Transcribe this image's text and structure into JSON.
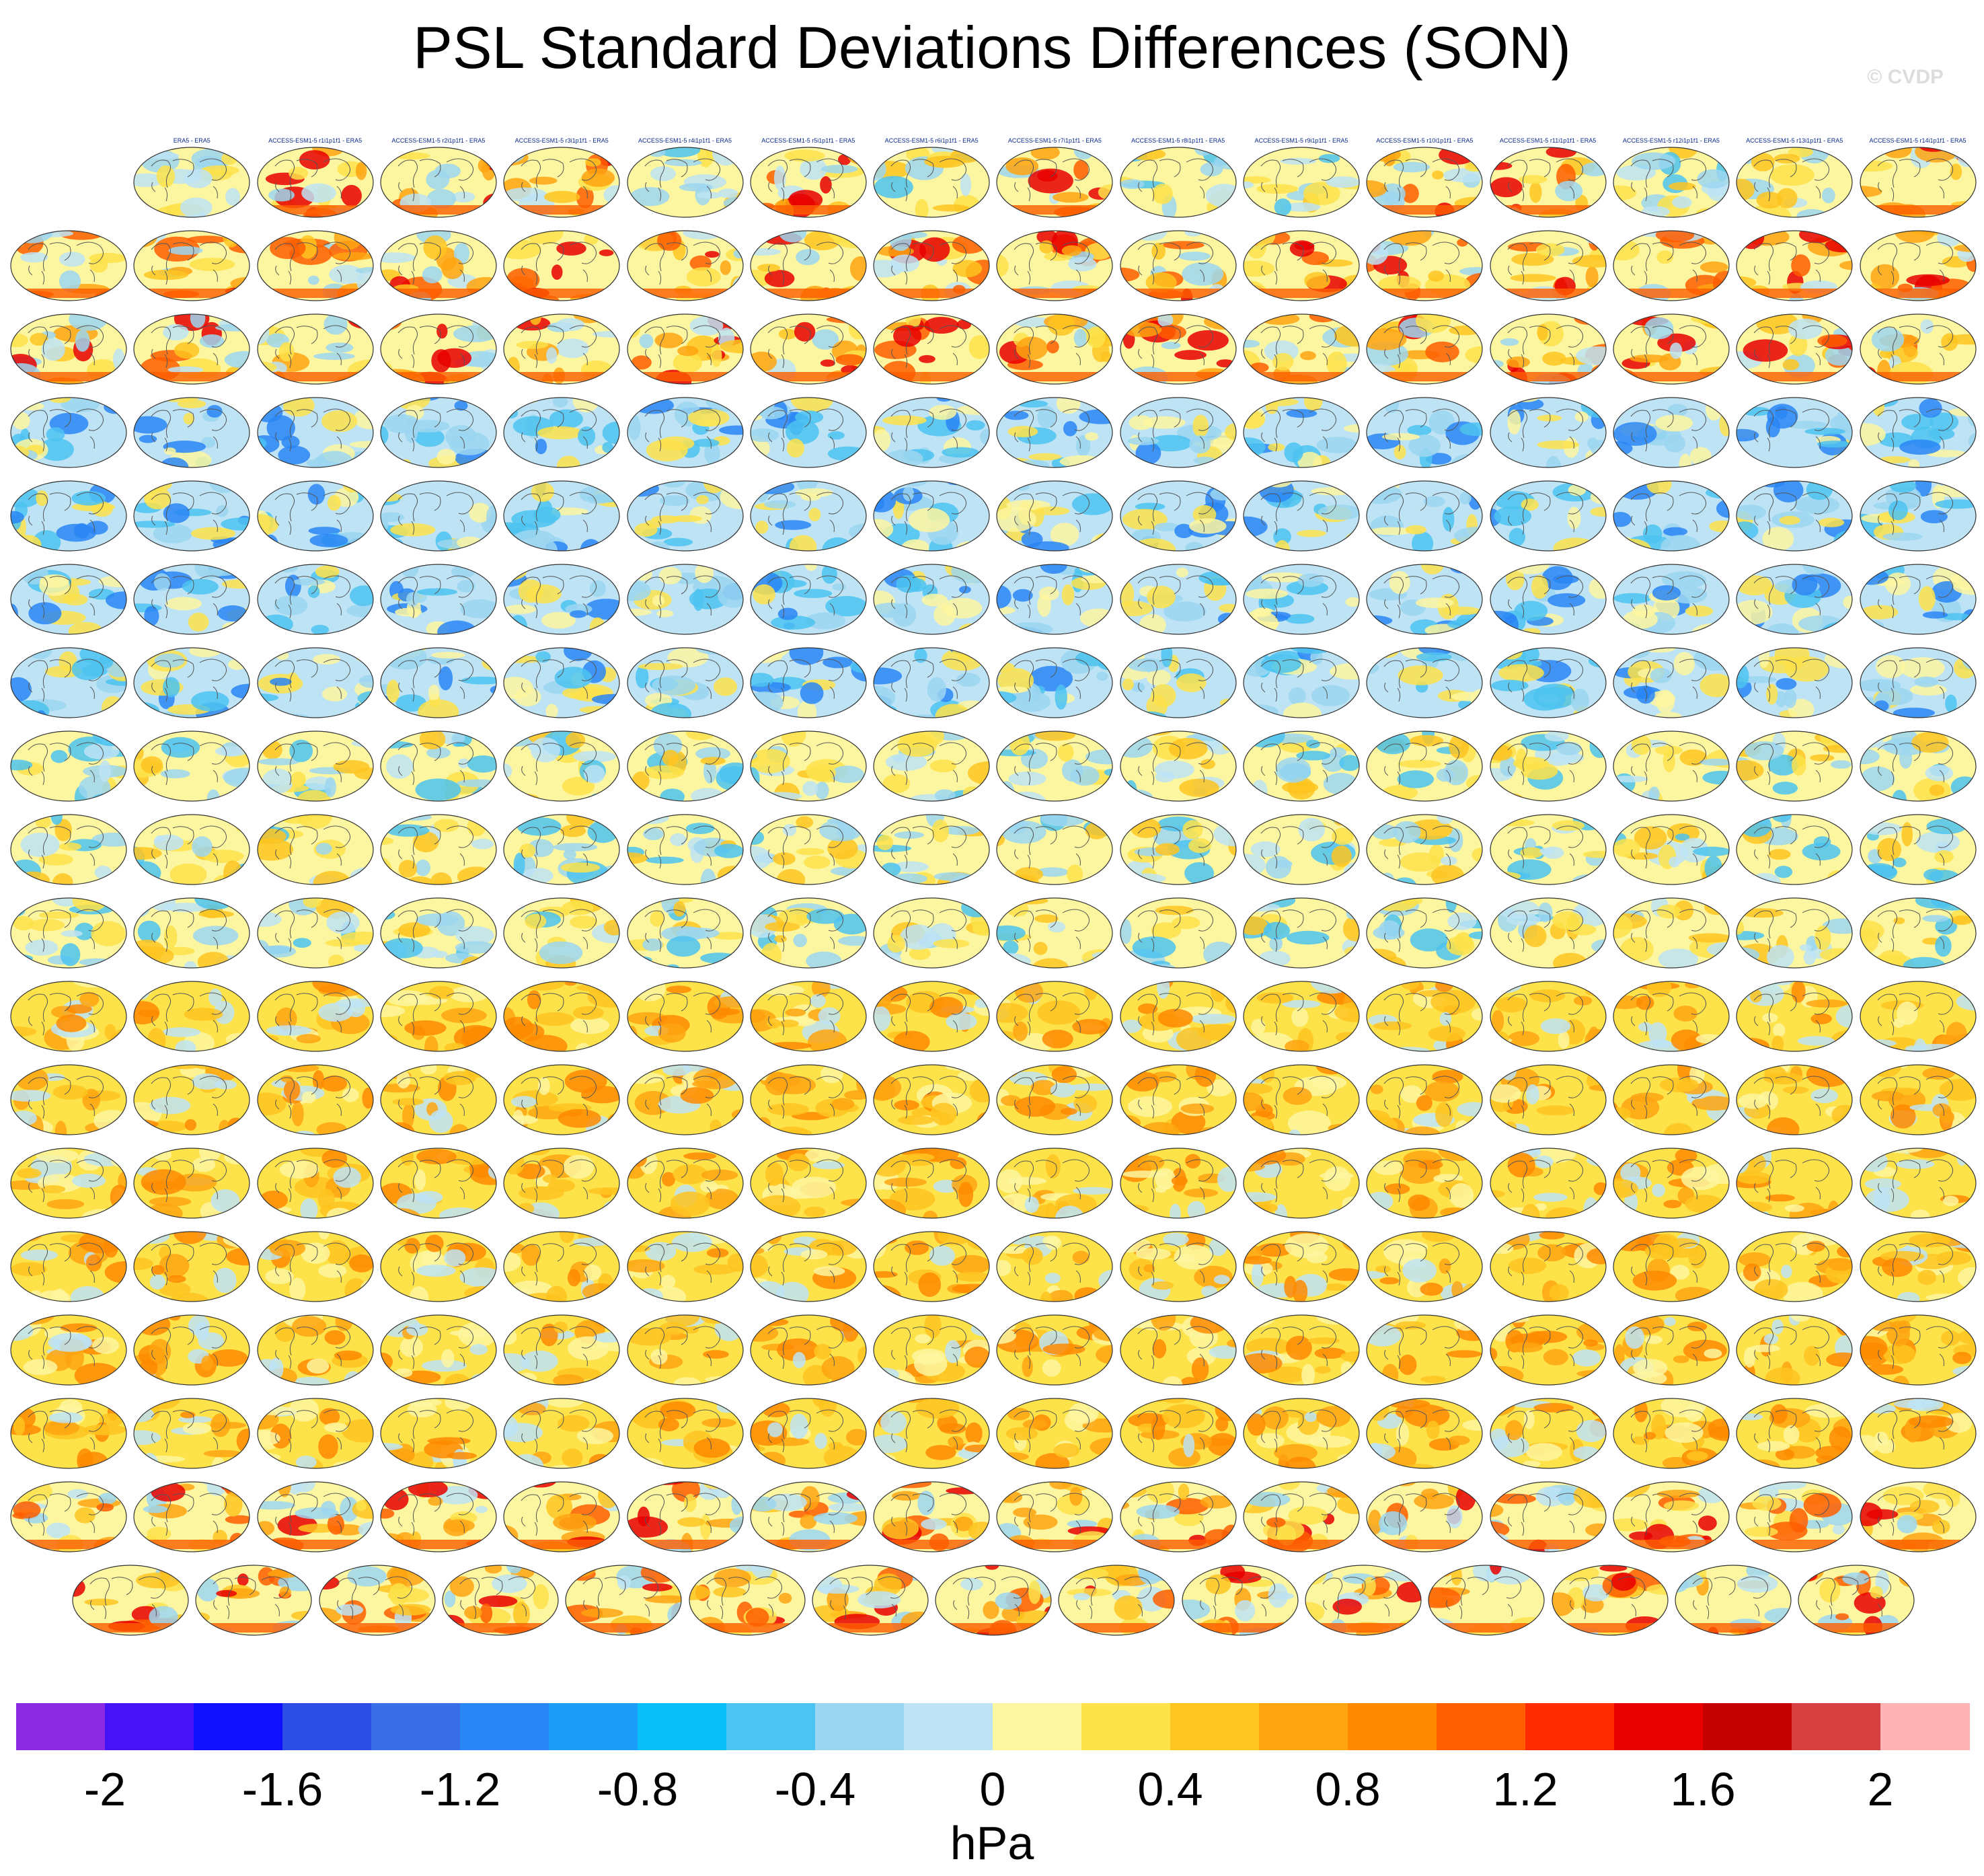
{
  "figure": {
    "title": "PSL Standard Deviations Differences (SON)",
    "credit": "© CVDP"
  },
  "panels": [
    {
      "label": "ERA5 - ERA5",
      "tint": "neutral"
    },
    {
      "label": "ACCESS-ESM1-5 r1i1p1f1 - ERA5",
      "tint": "warm-south"
    },
    {
      "label": "ACCESS-ESM1-5 r2i1p1f1 - ERA5",
      "tint": "warm-south"
    },
    {
      "label": "ACCESS-ESM1-5 r3i1p1f1 - ERA5",
      "tint": "warm-south"
    },
    {
      "label": "ACCESS-ESM1-5 r4i1p1f1 - ERA5",
      "tint": "mixed"
    },
    {
      "label": "ACCESS-ESM1-5 r5i1p1f1 - ERA5",
      "tint": "warm-south"
    },
    {
      "label": "ACCESS-ESM1-5 r6i1p1f1 - ERA5",
      "tint": "mixed"
    },
    {
      "label": "ACCESS-ESM1-5 r7i1p1f1 - ERA5",
      "tint": "warm-south"
    },
    {
      "label": "ACCESS-ESM1-5 r8i1p1f1 - ERA5",
      "tint": "mixed"
    },
    {
      "label": "ACCESS-ESM1-5 r9i1p1f1 - ERA5",
      "tint": "mixed"
    },
    {
      "label": "ACCESS-ESM1-5 r10i1p1f1 - ERA5",
      "tint": "warm-south"
    },
    {
      "label": "ACCESS-ESM1-5 r11i1p1f1 - ERA5",
      "tint": "warm-south"
    },
    {
      "label": "ACCESS-ESM1-5 r12i1p1f1 - ERA5",
      "tint": "mixed"
    },
    {
      "label": "ACCESS-ESM1-5 r13i1p1f1 - ERA5",
      "tint": "mixed"
    },
    {
      "label": "ACCESS-ESM1-5 r14i1p1f1 - ERA5",
      "tint": "warm-south"
    }
  ],
  "colorbar": {
    "colors": [
      "#8a2be2",
      "#4513f5",
      "#1010ff",
      "#2c4de6",
      "#3a6ee6",
      "#2a86f5",
      "#1c9cf7",
      "#08bff7",
      "#4cc3f0",
      "#9cd6f0",
      "#bde3f5",
      "#fdf6a0",
      "#fde24a",
      "#fec420",
      "#fea510",
      "#fe8a00",
      "#fe5e00",
      "#fe2a00",
      "#e80000",
      "#c40000",
      "#d64040",
      "#feb4b4"
    ],
    "ticks": [
      "-2",
      "-1.6",
      "-1.2",
      "-0.8",
      "-0.4",
      "0",
      "0.4",
      "0.8",
      "1.2",
      "1.6",
      "2"
    ],
    "unit": "hPa"
  }
}
